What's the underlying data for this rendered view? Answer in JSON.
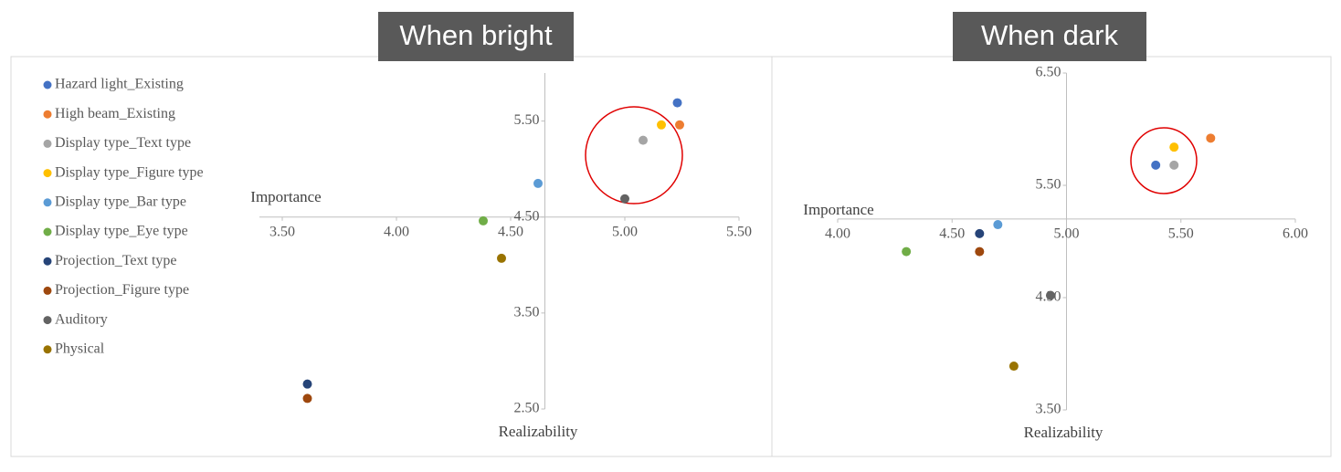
{
  "chart_data": [
    {
      "type": "scatter",
      "title": "When bright",
      "x_label": "Realizability",
      "y_label": "Importance",
      "xlim": [
        3.4,
        5.5
      ],
      "ylim": [
        2.5,
        6.0
      ],
      "x_axis_at": 4.5,
      "y_axis_at": 4.65,
      "xticks": [
        {
          "value": 3.5,
          "label": "3.50"
        },
        {
          "value": 4.0,
          "label": "4.00"
        },
        {
          "value": 4.5,
          "label": "4.50"
        },
        {
          "value": 5.0,
          "label": "5.00"
        },
        {
          "value": 5.5,
          "label": "5.50"
        }
      ],
      "yticks": [
        {
          "value": 2.5,
          "label": "2.50"
        },
        {
          "value": 3.5,
          "label": "3.50"
        },
        {
          "value": 4.5,
          "label": "4.50"
        },
        {
          "value": 5.5,
          "label": "5.50"
        }
      ],
      "legend": "top-left",
      "series": [
        {
          "name": "Hazard light_Existing",
          "color": "#4472c4",
          "x": [
            5.23
          ],
          "y": [
            5.69
          ]
        },
        {
          "name": "High beam_Existing",
          "color": "#ed7d31",
          "x": [
            5.24
          ],
          "y": [
            5.46
          ]
        },
        {
          "name": "Display type_Text type",
          "color": "#a5a5a5",
          "x": [
            5.08
          ],
          "y": [
            5.3
          ]
        },
        {
          "name": "Display type_Figure type",
          "color": "#ffc000",
          "x": [
            5.16
          ],
          "y": [
            5.46
          ]
        },
        {
          "name": "Display type_Bar type",
          "color": "#5b9bd5",
          "x": [
            4.62
          ],
          "y": [
            4.85
          ]
        },
        {
          "name": "Display type_Eye type",
          "color": "#70ad47",
          "x": [
            4.38
          ],
          "y": [
            4.46
          ]
        },
        {
          "name": "Projection_Text type",
          "color": "#264478",
          "x": [
            3.61
          ],
          "y": [
            2.76
          ]
        },
        {
          "name": "Projection_Figure type",
          "color": "#9e480e",
          "x": [
            3.61
          ],
          "y": [
            2.61
          ]
        },
        {
          "name": "Auditory",
          "color": "#636363",
          "x": [
            5.0
          ],
          "y": [
            4.69
          ]
        },
        {
          "name": "Physical",
          "color": "#997300",
          "x": [
            4.46
          ],
          "y": [
            4.07
          ]
        }
      ]
    },
    {
      "type": "scatter",
      "title": "When dark",
      "x_label": "Realizability",
      "y_label": "Importance",
      "xlim": [
        4.0,
        6.0
      ],
      "ylim": [
        3.5,
        6.5
      ],
      "x_axis_at": 5.2,
      "y_axis_at": 5.0,
      "xticks": [
        {
          "value": 4.0,
          "label": "4.00"
        },
        {
          "value": 4.5,
          "label": "4.50"
        },
        {
          "value": 5.0,
          "label": "5.00"
        },
        {
          "value": 5.5,
          "label": "5.50"
        },
        {
          "value": 6.0,
          "label": "6.00"
        }
      ],
      "yticks": [
        {
          "value": 3.5,
          "label": "3.50"
        },
        {
          "value": 4.5,
          "label": "4.50"
        },
        {
          "value": 5.5,
          "label": "5.50"
        },
        {
          "value": 6.5,
          "label": "6.50"
        }
      ],
      "series": [
        {
          "color": "#4472c4",
          "x": [
            5.39
          ],
          "y": [
            5.68
          ]
        },
        {
          "color": "#ed7d31",
          "x": [
            5.63
          ],
          "y": [
            5.92
          ]
        },
        {
          "color": "#a5a5a5",
          "x": [
            5.47
          ],
          "y": [
            5.68
          ]
        },
        {
          "color": "#ffc000",
          "x": [
            5.47
          ],
          "y": [
            5.84
          ]
        },
        {
          "color": "#5b9bd5",
          "x": [
            4.7
          ],
          "y": [
            5.15
          ]
        },
        {
          "color": "#70ad47",
          "x": [
            4.3
          ],
          "y": [
            4.91
          ]
        },
        {
          "color": "#264478",
          "x": [
            4.62
          ],
          "y": [
            5.07
          ]
        },
        {
          "color": "#9e480e",
          "x": [
            4.62
          ],
          "y": [
            4.91
          ]
        },
        {
          "color": "#636363",
          "x": [
            4.93
          ],
          "y": [
            4.52
          ]
        },
        {
          "color": "#997300",
          "x": [
            4.77
          ],
          "y": [
            3.89
          ]
        }
      ]
    }
  ]
}
